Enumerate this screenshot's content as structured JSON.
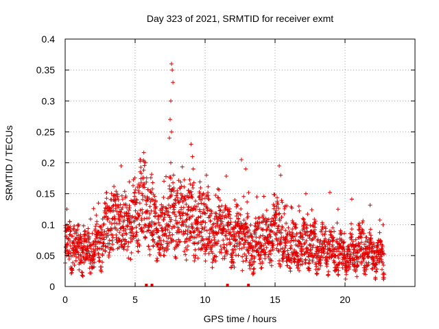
{
  "chart_data": {
    "type": "scatter",
    "title": "Day 323 of 2021, SRMTID for receiver exmt",
    "xlabel": "GPS time / hours",
    "ylabel": "SRMTID / TECUs",
    "xlim": [
      0,
      25
    ],
    "ylim": [
      0,
      0.4
    ],
    "x_ticks": [
      0,
      5,
      10,
      15,
      20
    ],
    "x_tick_labels": [
      "0",
      "5",
      "10",
      "15",
      "20"
    ],
    "y_ticks": [
      0,
      0.05,
      0.1,
      0.15,
      0.2,
      0.25,
      0.3,
      0.35,
      0.4
    ],
    "y_tick_labels": [
      "0",
      "0.05",
      "0.1",
      "0.15",
      "0.2",
      "0.25",
      "0.3",
      "0.35",
      "0.4"
    ],
    "grid": true,
    "marker": "+",
    "color": "#e00000",
    "series": [
      {
        "name": "SRMTID",
        "envelope": {
          "x": [
            0,
            0.5,
            1,
            1.5,
            2,
            2.5,
            3,
            3.5,
            4,
            4.5,
            5,
            5.5,
            6,
            6.5,
            7,
            7.5,
            8,
            8.5,
            9,
            9.5,
            10,
            10.5,
            11,
            11.5,
            12,
            12.5,
            13,
            13.5,
            14,
            14.5,
            15,
            15.5,
            16,
            16.5,
            17,
            17.5,
            18,
            18.5,
            19,
            19.5,
            20,
            20.5,
            21,
            21.5,
            22,
            22.5,
            22.8
          ],
          "y": [
            0.06,
            0.07,
            0.06,
            0.055,
            0.06,
            0.075,
            0.1,
            0.11,
            0.1,
            0.09,
            0.12,
            0.14,
            0.12,
            0.1,
            0.08,
            0.12,
            0.11,
            0.1,
            0.12,
            0.09,
            0.11,
            0.08,
            0.1,
            0.09,
            0.07,
            0.09,
            0.07,
            0.06,
            0.08,
            0.07,
            0.1,
            0.08,
            0.07,
            0.06,
            0.065,
            0.075,
            0.06,
            0.065,
            0.06,
            0.055,
            0.045,
            0.05,
            0.06,
            0.055,
            0.05,
            0.045,
            0.05
          ]
        },
        "highlights": [
          {
            "x": 7.6,
            "y": 0.36
          },
          {
            "x": 7.65,
            "y": 0.35
          },
          {
            "x": 7.7,
            "y": 0.33
          },
          {
            "x": 7.55,
            "y": 0.3
          },
          {
            "x": 7.5,
            "y": 0.27
          },
          {
            "x": 7.6,
            "y": 0.25
          },
          {
            "x": 7.45,
            "y": 0.24
          },
          {
            "x": 7.55,
            "y": 0.2
          },
          {
            "x": 9.0,
            "y": 0.23
          },
          {
            "x": 9.1,
            "y": 0.21
          },
          {
            "x": 9.15,
            "y": 0.19
          },
          {
            "x": 12.6,
            "y": 0.205
          },
          {
            "x": 12.9,
            "y": 0.19
          },
          {
            "x": 15.3,
            "y": 0.195
          },
          {
            "x": 15.4,
            "y": 0.18
          },
          {
            "x": 5.35,
            "y": 0.205
          },
          {
            "x": 4.0,
            "y": 0.195
          },
          {
            "x": 10.1,
            "y": 0.18
          },
          {
            "x": 17.2,
            "y": 0.15
          },
          {
            "x": 19.5,
            "y": 0.125
          }
        ]
      }
    ],
    "gap_markers_x": [
      5.8,
      6.2,
      11.6,
      13.1
    ]
  }
}
